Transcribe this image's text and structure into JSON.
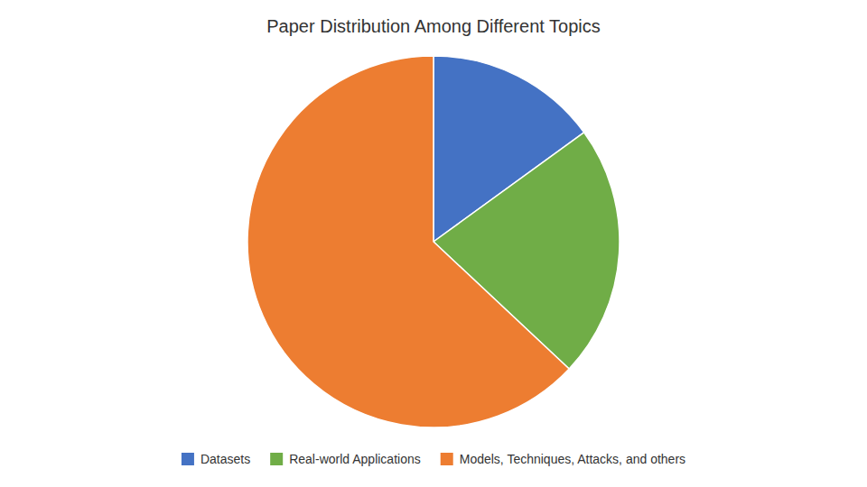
{
  "chart_data": {
    "type": "pie",
    "title": "Paper Distribution Among Different Topics",
    "categories": [
      "Datasets",
      "Real-world Applications",
      "Models, Techniques, Attacks, and others"
    ],
    "values": [
      15,
      22,
      63
    ],
    "colors": [
      "#4472C4",
      "#70AD47",
      "#ED7D31"
    ],
    "legend": "bottom"
  }
}
